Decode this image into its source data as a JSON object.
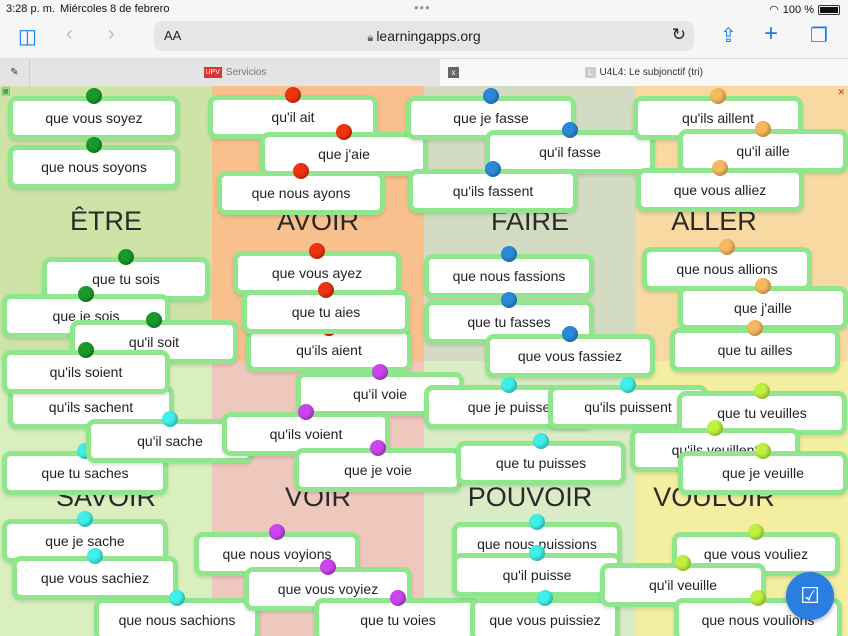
{
  "status": {
    "time": "3:28 p. m.",
    "date": "Miércoles 8 de febrero",
    "battery": "100 %"
  },
  "browser": {
    "aa": "AA",
    "url": "learningapps.org",
    "tabs": [
      {
        "label": "Servicios"
      },
      {
        "label": "U4L4: Le subjonctif (tri)"
      }
    ],
    "tab_close": "x",
    "tab_icon_letter": "L"
  },
  "colors": {
    "card_border": "#8fe68c",
    "etre": "#1a9a2a",
    "avoir": "#ee3311",
    "faire": "#2a8ad8",
    "aller": "#f8b860",
    "savoir": "#40f0e8",
    "voir": "#cc44ee",
    "pouvoir": "#40f0e8",
    "vouloir": "#c0f040",
    "check_button": "#2a7de1"
  },
  "categories": [
    "ÊTRE",
    "AVOIR",
    "FAIRE",
    "ALLER",
    "SAVOIR",
    "VOIR",
    "POUVOIR",
    "VOULOIR"
  ],
  "cards": [
    {
      "text": "que vous soyez",
      "group": "etre"
    },
    {
      "text": "que nous soyons",
      "group": "etre"
    },
    {
      "text": "qu'il ait",
      "group": "avoir"
    },
    {
      "text": "que j'aie",
      "group": "avoir"
    },
    {
      "text": "que nous ayons",
      "group": "avoir"
    },
    {
      "text": "que je fasse",
      "group": "faire"
    },
    {
      "text": "qu'il fasse",
      "group": "faire"
    },
    {
      "text": "qu'ils fassent",
      "group": "faire"
    },
    {
      "text": "qu'ils aillent",
      "group": "aller"
    },
    {
      "text": "qu'il aille",
      "group": "aller"
    },
    {
      "text": "que vous alliez",
      "group": "aller"
    },
    {
      "text": "qu'ils sachent",
      "group": "savoir"
    },
    {
      "text": "que tu saches",
      "group": "savoir"
    },
    {
      "text": "que tu sois",
      "group": "etre"
    },
    {
      "text": "que je sois",
      "group": "etre"
    },
    {
      "text": "qu'il soit",
      "group": "etre"
    },
    {
      "text": "qu'ils soient",
      "group": "etre"
    },
    {
      "text": "qu'il sache",
      "group": "savoir"
    },
    {
      "text": "qu'ils aient",
      "group": "avoir"
    },
    {
      "text": "que vous ayez",
      "group": "avoir"
    },
    {
      "text": "que tu aies",
      "group": "avoir"
    },
    {
      "text": "qu'il voie",
      "group": "voir"
    },
    {
      "text": "qu'ils voient",
      "group": "voir"
    },
    {
      "text": "que je voie",
      "group": "voir"
    },
    {
      "text": "que nous fassions",
      "group": "faire"
    },
    {
      "text": "que tu fasses",
      "group": "faire"
    },
    {
      "text": "que vous fassiez",
      "group": "faire"
    },
    {
      "text": "que je puisse",
      "group": "pouvoir"
    },
    {
      "text": "qu'ils puissent",
      "group": "pouvoir"
    },
    {
      "text": "que tu puisses",
      "group": "pouvoir"
    },
    {
      "text": "que nous allions",
      "group": "aller"
    },
    {
      "text": "que j'aille",
      "group": "aller"
    },
    {
      "text": "que tu ailles",
      "group": "aller"
    },
    {
      "text": "que tu veuilles",
      "group": "vouloir"
    },
    {
      "text": "qu'ils veuillent",
      "group": "vouloir"
    },
    {
      "text": "que je veuille",
      "group": "vouloir"
    },
    {
      "text": "que je sache",
      "group": "savoir"
    },
    {
      "text": "que vous sachiez",
      "group": "savoir"
    },
    {
      "text": "que nous sachions",
      "group": "savoir"
    },
    {
      "text": "que nous voyions",
      "group": "voir"
    },
    {
      "text": "que vous voyiez",
      "group": "voir"
    },
    {
      "text": "que tu voies",
      "group": "voir"
    },
    {
      "text": "que nous puissions",
      "group": "pouvoir"
    },
    {
      "text": "qu'il puisse",
      "group": "pouvoir"
    },
    {
      "text": "que vous puissiez",
      "group": "pouvoir"
    },
    {
      "text": "que vous vouliez",
      "group": "vouloir"
    },
    {
      "text": "qu'il veuille",
      "group": "vouloir"
    },
    {
      "text": "que nous voulions",
      "group": "vouloir"
    }
  ]
}
